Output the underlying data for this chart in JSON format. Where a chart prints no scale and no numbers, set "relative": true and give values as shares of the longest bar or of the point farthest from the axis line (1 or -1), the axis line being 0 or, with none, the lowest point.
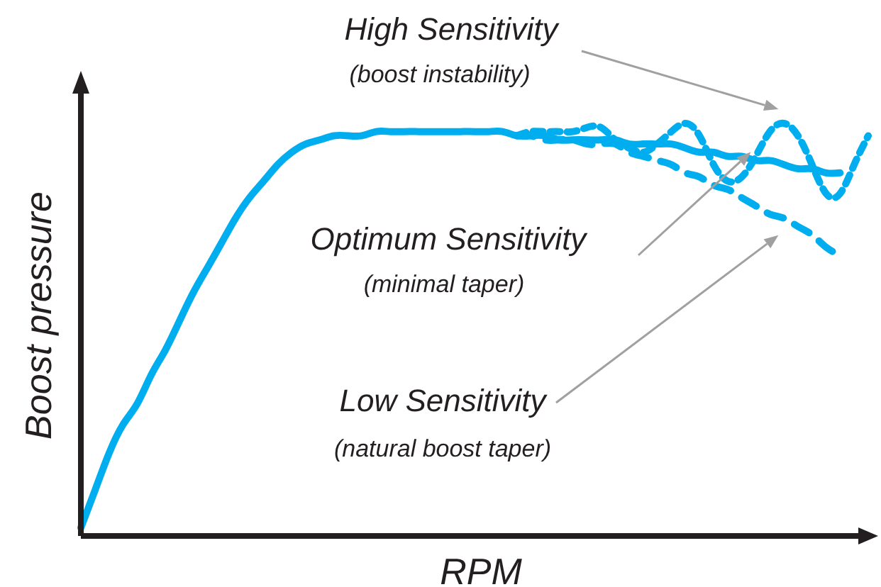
{
  "chart_data": {
    "type": "line",
    "relative": true,
    "xlabel": "RPM",
    "ylabel": "Boost pressure",
    "categories": [
      null,
      null,
      null,
      null,
      null,
      null,
      null,
      null,
      null,
      null,
      null,
      null,
      null,
      null,
      null,
      null,
      null,
      null,
      null,
      null,
      null,
      null,
      null,
      null,
      null,
      null,
      null,
      null,
      null,
      null,
      null,
      null,
      null,
      null,
      null,
      null,
      null,
      null,
      null,
      null,
      null,
      null,
      null,
      null,
      null,
      null,
      null,
      null,
      null,
      null,
      null,
      null,
      null,
      null,
      null,
      null,
      null
    ],
    "series": [
      {
        "name": "High Sensitivity",
        "color": "#00aeef",
        "line_style": "dotted",
        "values": [
          null,
          null,
          null,
          null,
          null,
          null,
          null,
          null,
          null,
          null,
          null,
          null,
          null,
          null,
          null,
          null,
          null,
          null,
          null,
          null,
          null,
          null,
          null,
          null,
          null,
          null,
          null,
          null,
          null,
          null,
          null,
          0.97,
          0.98,
          0.98,
          0.98,
          0.98,
          0.99,
          0.99,
          0.96,
          0.94,
          0.93,
          0.95,
          0.98,
          1.0,
          0.97,
          0.9,
          0.86,
          0.87,
          0.92,
          0.98,
          1.0,
          0.97,
          0.9,
          0.83,
          0.83,
          0.9,
          0.97
        ]
      },
      {
        "name": "Optimum Sensitivity",
        "color": "#00aeef",
        "line_style": "solid",
        "values": [
          0.02,
          0.11,
          0.2,
          0.27,
          0.32,
          0.39,
          0.45,
          0.52,
          0.59,
          0.65,
          0.71,
          0.77,
          0.82,
          0.86,
          0.9,
          0.93,
          0.95,
          0.96,
          0.97,
          0.97,
          0.97,
          0.98,
          0.98,
          0.98,
          0.98,
          0.98,
          0.98,
          0.98,
          0.98,
          0.98,
          0.98,
          0.97,
          0.97,
          0.97,
          0.96,
          0.96,
          0.96,
          0.96,
          0.96,
          0.95,
          0.95,
          0.95,
          0.95,
          0.94,
          0.93,
          0.93,
          0.92,
          0.92,
          0.91,
          0.91,
          0.9,
          0.89,
          0.89,
          0.88,
          0.88,
          null,
          null
        ]
      },
      {
        "name": "Low Sensitivity",
        "color": "#00aeef",
        "line_style": "dashed",
        "values": [
          null,
          null,
          null,
          null,
          null,
          null,
          null,
          null,
          null,
          null,
          null,
          null,
          null,
          null,
          null,
          null,
          null,
          null,
          null,
          null,
          null,
          null,
          null,
          null,
          null,
          null,
          null,
          null,
          null,
          null,
          null,
          0.97,
          0.97,
          0.96,
          0.96,
          0.96,
          0.95,
          0.95,
          0.95,
          0.93,
          0.92,
          0.91,
          0.9,
          0.88,
          0.87,
          0.85,
          0.84,
          0.82,
          0.8,
          0.78,
          0.77,
          0.75,
          0.73,
          0.7,
          0.68,
          null,
          null
        ]
      }
    ],
    "annotations": [
      "(boost instability)",
      "(minimal taper)",
      "(natural boost taper)"
    ]
  }
}
